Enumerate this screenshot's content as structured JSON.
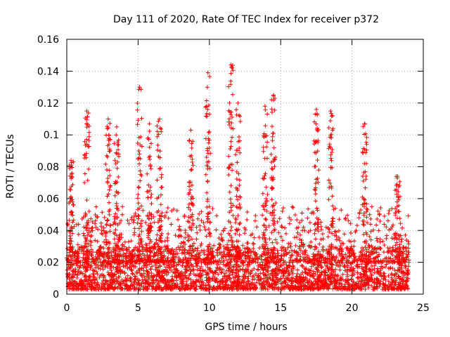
{
  "chart_data": {
    "type": "scatter",
    "title": "Day 111 of 2020, Rate Of TEC Index for receiver p372",
    "xlabel": "GPS time / hours",
    "ylabel": "ROTI / TECUs",
    "xlim": [
      0,
      25
    ],
    "ylim": [
      0,
      0.16
    ],
    "xticks": [
      0,
      5,
      10,
      15,
      20,
      25
    ],
    "xtick_labels": [
      "0",
      "5",
      "10",
      "15",
      "20",
      "25"
    ],
    "yticks": [
      0,
      0.02,
      0.04,
      0.06,
      0.08,
      0.1,
      0.12,
      0.14,
      0.16
    ],
    "ytick_labels": [
      "0",
      "0.02",
      "0.04",
      "0.06",
      "0.08",
      "0.1",
      "0.12",
      "0.14",
      "0.16"
    ],
    "grid": true,
    "marker": "+",
    "color": "#ff0000",
    "series": [
      {
        "name": "ROTI",
        "data_range_hours": [
          0,
          24
        ],
        "peaks": [
          {
            "x": 0.3,
            "y": 0.084
          },
          {
            "x": 1.4,
            "y": 0.115
          },
          {
            "x": 2.9,
            "y": 0.11
          },
          {
            "x": 3.5,
            "y": 0.105
          },
          {
            "x": 5.1,
            "y": 0.13
          },
          {
            "x": 5.8,
            "y": 0.107
          },
          {
            "x": 6.5,
            "y": 0.11
          },
          {
            "x": 8.7,
            "y": 0.103
          },
          {
            "x": 9.9,
            "y": 0.139
          },
          {
            "x": 11.5,
            "y": 0.144
          },
          {
            "x": 12.0,
            "y": 0.12
          },
          {
            "x": 13.9,
            "y": 0.118
          },
          {
            "x": 14.5,
            "y": 0.125
          },
          {
            "x": 17.5,
            "y": 0.116
          },
          {
            "x": 18.5,
            "y": 0.115
          },
          {
            "x": 20.9,
            "y": 0.107
          },
          {
            "x": 23.2,
            "y": 0.074
          }
        ],
        "baseline_range": [
          0.003,
          0.03
        ]
      }
    ]
  }
}
